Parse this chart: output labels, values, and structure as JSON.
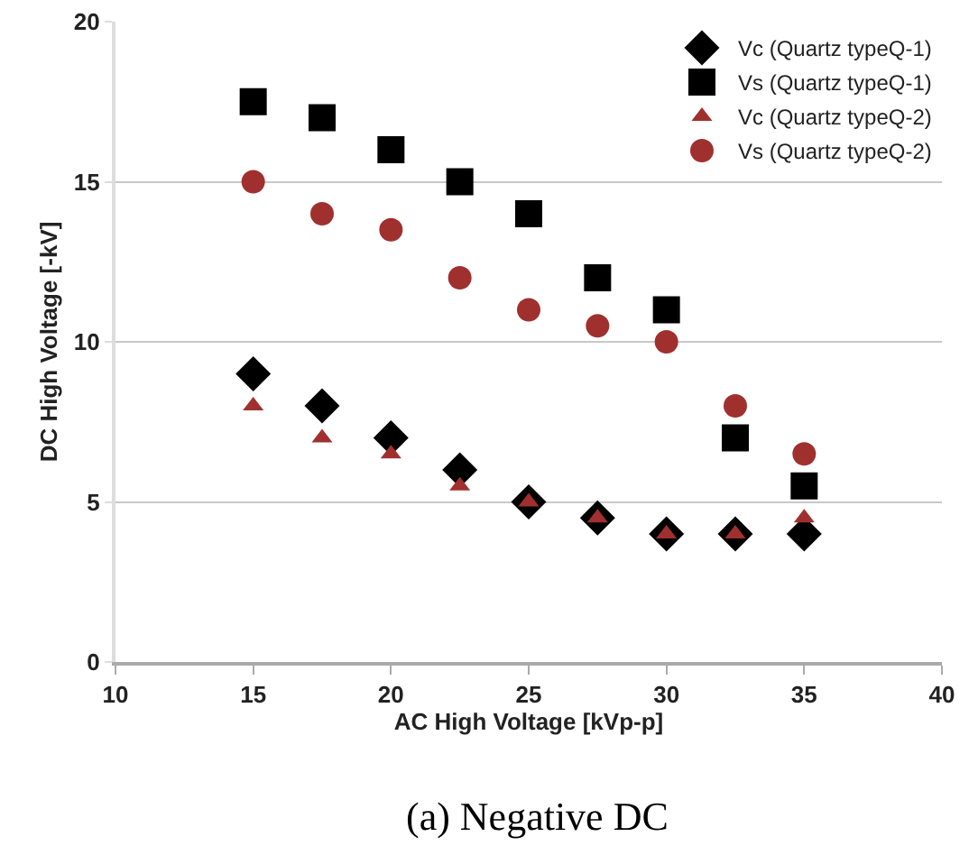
{
  "chart_data": {
    "type": "scatter",
    "xlabel": "AC High Voltage [kVp-p]",
    "ylabel": "DC High Voltage [-kV]",
    "x": [
      15,
      17.5,
      20,
      22.5,
      25,
      27.5,
      30,
      32.5,
      35
    ],
    "series": [
      {
        "name": "Vc (Quartz typeQ-1)",
        "color": "#000000",
        "marker": "diamond",
        "values": [
          9,
          8,
          7,
          6,
          5,
          4.5,
          4,
          4,
          4
        ]
      },
      {
        "name": "Vs (Quartz typeQ-1)",
        "color": "#000000",
        "marker": "square",
        "values": [
          17.5,
          17,
          16,
          15,
          14,
          12,
          11,
          7,
          5.5
        ]
      },
      {
        "name": "Vc (Quartz typeQ-2)",
        "color": "#a0302e",
        "marker": "triangle",
        "values": [
          8,
          7,
          6.5,
          5.5,
          5,
          4.5,
          4,
          4,
          4.5
        ]
      },
      {
        "name": "Vs (Quartz typeQ-2)",
        "color": "#a0302e",
        "marker": "circle",
        "values": [
          15,
          14,
          13.5,
          12,
          11,
          10.5,
          10,
          8,
          6.5
        ]
      }
    ],
    "xlim": [
      10,
      40
    ],
    "xticks": [
      10,
      15,
      20,
      25,
      30,
      35,
      40
    ],
    "ylim": [
      0,
      20
    ],
    "yticks": [
      0,
      5,
      10,
      15,
      20
    ],
    "grid": "y",
    "legend": "top right",
    "annotations": [
      "(a) Negative DC"
    ]
  }
}
